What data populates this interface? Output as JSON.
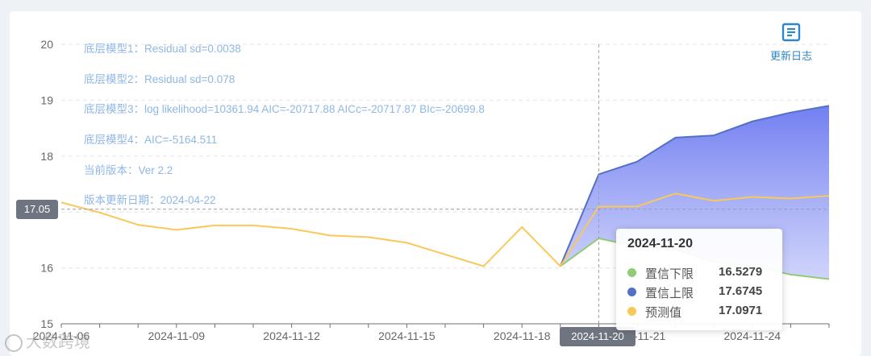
{
  "chart_data": {
    "type": "area",
    "x": [
      "2024-11-06",
      "2024-11-07",
      "2024-11-08",
      "2024-11-09",
      "2024-11-10",
      "2024-11-11",
      "2024-11-12",
      "2024-11-13",
      "2024-11-14",
      "2024-11-15",
      "2024-11-16",
      "2024-11-17",
      "2024-11-18",
      "2024-11-19",
      "2024-11-20",
      "2024-11-21",
      "2024-11-22",
      "2024-11-23",
      "2024-11-24",
      "2024-11-25",
      "2024-11-26"
    ],
    "xticks": [
      "2024-11-06",
      "2024-11-09",
      "2024-11-12",
      "2024-11-15",
      "2024-11-18",
      "2024-11-21",
      "2024-11-24"
    ],
    "yticks": [
      15,
      16,
      17,
      18,
      19,
      20
    ],
    "ylim": [
      15,
      20
    ],
    "grid": true,
    "series": [
      {
        "name": "置信下限",
        "color": "#91cc75",
        "values": [
          null,
          null,
          null,
          null,
          null,
          null,
          null,
          null,
          null,
          null,
          null,
          null,
          null,
          16.03,
          16.5279,
          16.38,
          16.33,
          16.1,
          16.03,
          15.88,
          15.8
        ]
      },
      {
        "name": "置信上限",
        "color": "#5470c6",
        "values": [
          null,
          null,
          null,
          null,
          null,
          null,
          null,
          null,
          null,
          null,
          null,
          null,
          null,
          16.03,
          17.6745,
          17.9,
          18.33,
          18.37,
          18.62,
          18.78,
          18.9
        ]
      },
      {
        "name": "预测值",
        "color": "#fac858",
        "values": [
          17.17,
          16.99,
          16.77,
          16.68,
          16.76,
          16.76,
          16.7,
          16.58,
          16.55,
          16.45,
          16.24,
          16.03,
          16.73,
          16.03,
          17.0971,
          17.1,
          17.33,
          17.2,
          17.27,
          17.24,
          17.29
        ]
      }
    ],
    "annotations": [
      "底层模型1：Residual sd=0.0038",
      "底层模型2：Residual sd=0.078",
      "底层模型3：log likelihood=10361.94 AIC=-20717.88 AICc=-20717.87 BIc=-20699.8",
      "底层模型4：AIC=-5164.511",
      "当前版本：Ver 2.2",
      "版本更新日期：2024-04-22"
    ],
    "tooltip": {
      "date": "2024-11-20",
      "rows": [
        {
          "name": "置信下限",
          "value": "16.5279",
          "color": "#91cc75"
        },
        {
          "name": "置信上限",
          "value": "17.6745",
          "color": "#5470c6"
        },
        {
          "name": "预测值",
          "value": "17.0971",
          "color": "#fac858"
        }
      ]
    },
    "pointer": {
      "x_label": "2024-11-20",
      "y_label": "17.05",
      "y_value": 17.05
    }
  },
  "toolbar": {
    "update_log_label": "更新日志",
    "update_log_icon": "document-icon"
  },
  "watermark": "大数跨境"
}
